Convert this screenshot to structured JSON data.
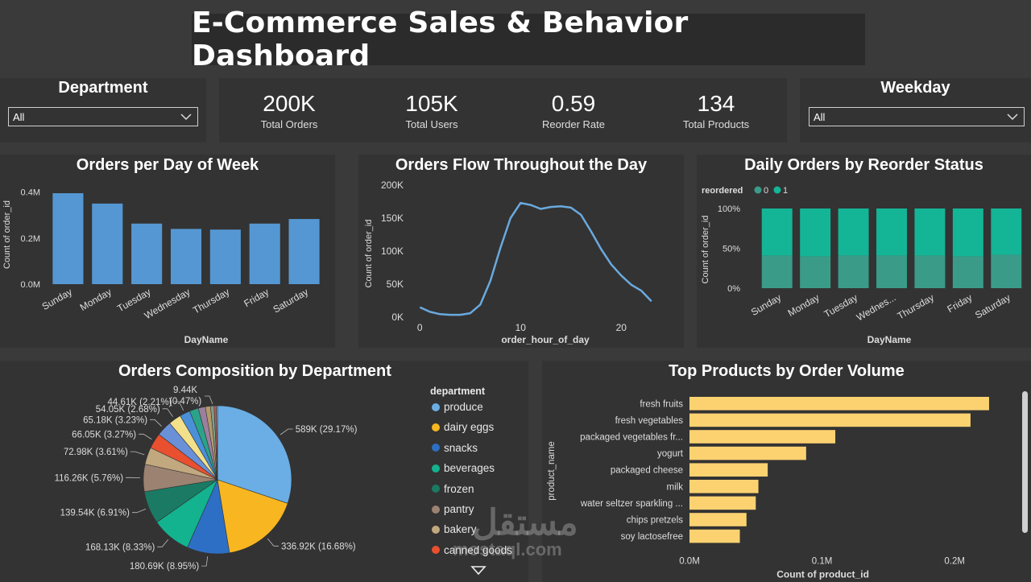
{
  "header": {
    "title": "E-Commerce Sales & Behavior Dashboard"
  },
  "slicers": {
    "department": {
      "title": "Department",
      "value": "All"
    },
    "weekday": {
      "title": "Weekday",
      "value": "All"
    }
  },
  "kpis": [
    {
      "value": "200K",
      "label": "Total Orders"
    },
    {
      "value": "105K",
      "label": "Total Users"
    },
    {
      "value": "0.59",
      "label": "Reorder Rate"
    },
    {
      "value": "134",
      "label": "Total Products"
    }
  ],
  "watermark": {
    "arabic": "مستقل",
    "latin": "mostaql.com"
  },
  "colors": {
    "bar_blue": "#5597d2",
    "line_blue": "#6aa9de",
    "teal_dark": "#3a9c88",
    "teal_light": "#14b596",
    "yellow_bar": "#fcd271"
  },
  "chart_data": [
    {
      "id": "orders_per_day",
      "type": "bar",
      "title": "Orders per Day of Week",
      "xlabel": "DayName",
      "ylabel": "Count of order_id",
      "categories": [
        "Sunday",
        "Monday",
        "Tuesday",
        "Wednesday",
        "Thursday",
        "Friday",
        "Saturday"
      ],
      "values": [
        395000,
        350000,
        263000,
        240000,
        237000,
        263000,
        283000
      ],
      "yticks": [
        0,
        200000,
        400000
      ],
      "ytick_labels": [
        "0.0M",
        "0.2M",
        "0.4M"
      ],
      "ylim": [
        0,
        430000
      ]
    },
    {
      "id": "orders_flow",
      "type": "line",
      "title": "Orders Flow Throughout the Day",
      "xlabel": "order_hour_of_day",
      "ylabel": "Count of order_id",
      "x": [
        0,
        1,
        2,
        3,
        4,
        5,
        6,
        7,
        8,
        9,
        10,
        11,
        12,
        13,
        14,
        15,
        16,
        17,
        18,
        19,
        20,
        21,
        22,
        23
      ],
      "values": [
        15000,
        8000,
        4500,
        3500,
        3500,
        6000,
        19000,
        55000,
        105000,
        150000,
        173000,
        170000,
        164000,
        167000,
        168000,
        166000,
        155000,
        130000,
        103000,
        80000,
        63000,
        49000,
        40000,
        24000
      ],
      "xticks": [
        0,
        10,
        20
      ],
      "yticks": [
        0,
        50000,
        100000,
        150000,
        200000
      ],
      "ytick_labels": [
        "0K",
        "50K",
        "100K",
        "150K",
        "200K"
      ],
      "xlim": [
        -0.5,
        23.5
      ],
      "ylim": [
        0,
        200000
      ]
    },
    {
      "id": "daily_reorder",
      "type": "bar",
      "stacked": "100%",
      "title": "Daily Orders by Reorder Status",
      "xlabel": "DayName",
      "ylabel": "Count of order_id",
      "legend_title": "reordered",
      "categories": [
        "Sunday",
        "Monday",
        "Tuesday",
        "Wednes...",
        "Thursday",
        "Friday",
        "Saturday"
      ],
      "series": [
        {
          "name": "0",
          "values": [
            41,
            40,
            41,
            41,
            41,
            40,
            42
          ]
        },
        {
          "name": "1",
          "values": [
            59,
            60,
            59,
            59,
            59,
            60,
            58
          ]
        }
      ],
      "yticks": [
        0,
        50,
        100
      ],
      "ytick_labels": [
        "0%",
        "50%",
        "100%"
      ],
      "ylim": [
        0,
        100
      ]
    },
    {
      "id": "dept_composition",
      "type": "pie",
      "title": "Orders Composition by Department",
      "legend_title": "department",
      "slices": [
        {
          "name": "produce",
          "value": 589000,
          "label": "589K (29.17%)",
          "color": "#6aaee5"
        },
        {
          "name": "dairy eggs",
          "value": 336920,
          "label": "336.92K (16.68%)",
          "color": "#f8b620"
        },
        {
          "name": "snacks",
          "value": 180690,
          "label": "180.69K (8.95%)",
          "color": "#2d6fc4"
        },
        {
          "name": "beverages",
          "value": 168130,
          "label": "168.13K (8.33%)",
          "color": "#13b38f"
        },
        {
          "name": "frozen",
          "value": 139540,
          "label": "139.54K (6.91%)",
          "color": "#1b7a63"
        },
        {
          "name": "pantry",
          "value": 116260,
          "label": "116.26K (5.76%)",
          "color": "#9c8371"
        },
        {
          "name": "bakery",
          "value": 72980,
          "label": "72.98K (3.61%)",
          "color": "#c2a87f"
        },
        {
          "name": "canned goods",
          "value": 66050,
          "label": "66.05K (3.27%)",
          "color": "#e95030"
        },
        {
          "name": "",
          "value": 65180,
          "label": "65.18K (3.23%)",
          "color": "#6a91d8"
        },
        {
          "name": "",
          "value": 54050,
          "label": "54.05K (2.68%)",
          "color": "#f2e08a"
        },
        {
          "name": "",
          "value": 44610,
          "label": "44.61K (2.21%)",
          "color": "#4a90d9"
        },
        {
          "name": "",
          "value": 38000,
          "label": "",
          "color": "#2aa389"
        },
        {
          "name": "",
          "value": 30000,
          "label": "",
          "color": "#9c7f9f"
        },
        {
          "name": "",
          "value": 22000,
          "label": "",
          "color": "#b59a6a"
        },
        {
          "name": "",
          "value": 15000,
          "label": "",
          "color": "#7d9d8a"
        },
        {
          "name": "",
          "value": 9440,
          "label": "9.44K (0.47%)",
          "color": "#d0584a"
        },
        {
          "name": "",
          "value": 5000,
          "label": "",
          "color": "#86b9e0"
        }
      ],
      "label_94": "9.44K",
      "label_94_pct": "(0.47%)"
    },
    {
      "id": "top_products",
      "type": "bar",
      "orientation": "horizontal",
      "title": "Top Products by Order Volume",
      "xlabel": "Count of product_id",
      "ylabel": "product_name",
      "categories": [
        "fresh fruits",
        "fresh vegetables",
        "packaged vegetables fr...",
        "yogurt",
        "packaged cheese",
        "milk",
        "water seltzer sparkling ...",
        "chips pretzels",
        "soy lactosefree"
      ],
      "values": [
        226000,
        212000,
        110000,
        88000,
        59000,
        52000,
        50000,
        43000,
        38000
      ],
      "xticks": [
        0,
        100000,
        200000
      ],
      "xtick_labels": [
        "0.0M",
        "0.1M",
        "0.2M"
      ],
      "xlim": [
        0,
        240000
      ]
    }
  ]
}
